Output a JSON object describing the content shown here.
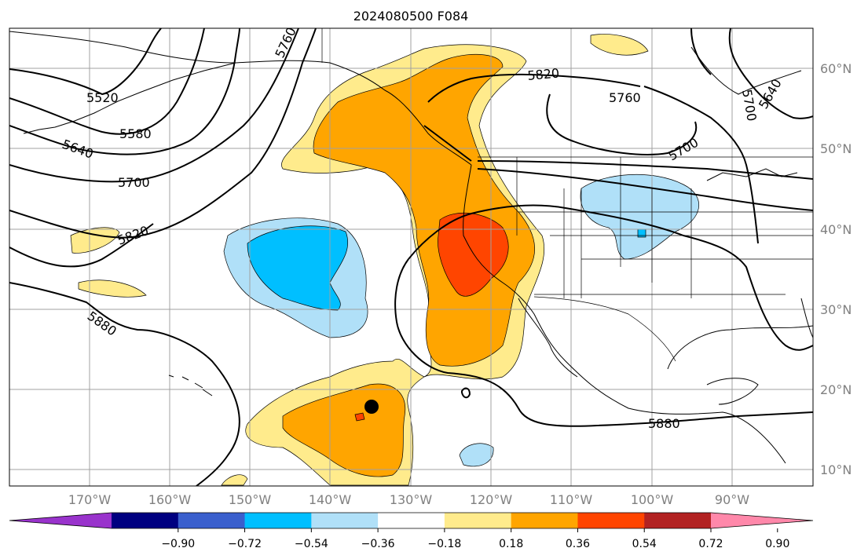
{
  "figure": {
    "title": "2024080500 F084"
  },
  "axes": {
    "lat_labels": [
      "60°N",
      "50°N",
      "40°N",
      "30°N",
      "20°N",
      "10°N"
    ],
    "lon_labels": [
      "170°W",
      "160°W",
      "150°W",
      "140°W",
      "130°W",
      "120°W",
      "110°W",
      "100°W",
      "90°W"
    ],
    "grid": true
  },
  "contours": {
    "field": "500 hPa geopotential height",
    "labels": [
      "5520",
      "5580",
      "5640",
      "5700",
      "5820",
      "5880",
      "5820",
      "5760",
      "5700",
      "5640",
      "5700",
      "5760",
      "5880"
    ]
  },
  "colorbar": {
    "ticks": [
      "−0.90",
      "−0.72",
      "−0.54",
      "−0.36",
      "−0.18",
      "0.18",
      "0.36",
      "0.54",
      "0.72",
      "0.90"
    ],
    "colors": [
      "#9933cc",
      "#000080",
      "#3a5fcd",
      "#00bfff",
      "#b0e0f8",
      "#ffffff",
      "#ffeb8c",
      "#ffa500",
      "#ff4500",
      "#b22222",
      "#ff88aa"
    ],
    "extend": "both"
  },
  "marker": {
    "label": "",
    "lat": 18,
    "lon": -135
  }
}
